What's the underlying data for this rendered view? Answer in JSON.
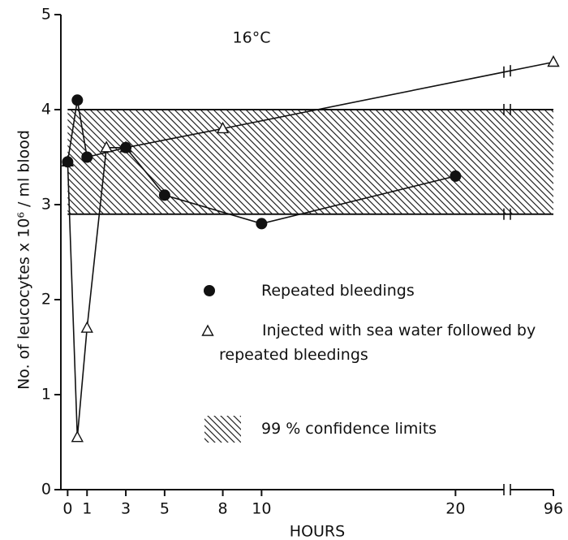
{
  "chart_data": {
    "type": "line",
    "ylabel": "No. of leucocytes x 10⁶ / ml blood",
    "xlabel": "HOURS",
    "annotation": "16°C",
    "xlim": [
      -0.35,
      96
    ],
    "ylim": [
      0,
      5
    ],
    "xticks": [
      0,
      1,
      3,
      5,
      8,
      10,
      20,
      96
    ],
    "yticks": [
      0,
      1,
      2,
      3,
      4,
      5
    ],
    "grid": false,
    "band": {
      "name": "99 % confidence limits",
      "values": [
        2.9,
        4.0
      ]
    },
    "series": [
      {
        "name": "Repeated bleedings",
        "color": "#111111",
        "marker": "circle",
        "x": [
          0,
          0.5,
          1,
          3,
          5,
          10,
          20
        ],
        "values": [
          3.45,
          4.1,
          3.5,
          3.6,
          3.1,
          2.8,
          3.3
        ]
      },
      {
        "name": "Injected with sea water followed by repeated bleedings",
        "color": "#111111",
        "marker": "triangle",
        "x": [
          0,
          0.5,
          1,
          2,
          3,
          8,
          96
        ],
        "values": [
          3.45,
          0.55,
          1.7,
          3.6,
          3.6,
          3.8,
          4.5
        ]
      }
    ]
  }
}
